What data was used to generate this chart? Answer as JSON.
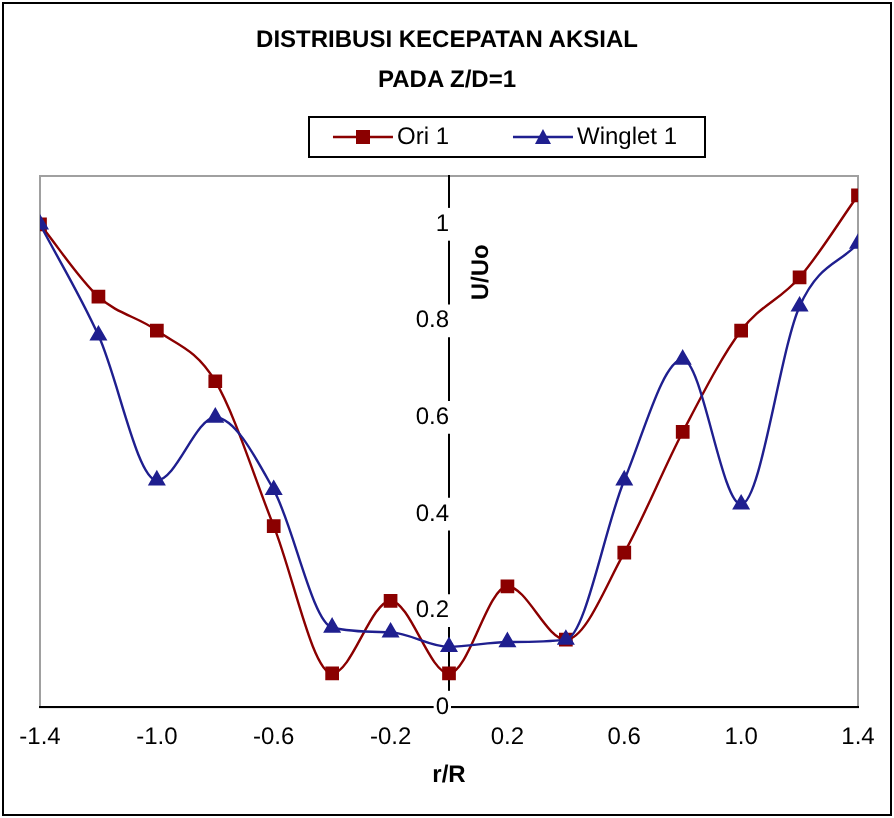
{
  "chart_data": {
    "type": "line",
    "title": "DISTRIBUSI KECEPATAN AKSIAL\nPADA Z/D=1",
    "xlabel": "r/R",
    "ylabel": "U/Uo",
    "x": [
      -1.4,
      -1.2,
      -1.0,
      -0.8,
      -0.6,
      -0.4,
      -0.2,
      0,
      0.2,
      0.4,
      0.6,
      0.8,
      1.0,
      1.2,
      1.4
    ],
    "series": [
      {
        "name": "Ori 1",
        "color": "#8b0000",
        "marker": "square",
        "values": [
          1.0,
          0.85,
          0.78,
          0.675,
          0.375,
          0.07,
          0.22,
          0.07,
          0.25,
          0.14,
          0.32,
          0.57,
          0.78,
          0.89,
          1.06
        ]
      },
      {
        "name": "Winglet 1",
        "color": "#1f1f8f",
        "marker": "triangle",
        "values": [
          1.0,
          0.77,
          0.47,
          0.6,
          0.45,
          0.165,
          0.155,
          0.125,
          0.135,
          0.14,
          0.47,
          0.72,
          0.42,
          0.83,
          0.96
        ]
      }
    ],
    "xlim": [
      -1.4,
      1.4
    ],
    "xticks": [
      -1.4,
      {
        "value": -1.0,
        "label": "-1.0"
      },
      -0.6,
      -0.2,
      0.2,
      0.6,
      {
        "value": 1.0,
        "label": "1.0"
      },
      1.4
    ],
    "ylim": [
      0,
      1.1
    ],
    "yticks": [
      0,
      0.2,
      0.4,
      0.6,
      0.8,
      1
    ],
    "grid": false,
    "legend": "top",
    "line_style": "solid"
  }
}
